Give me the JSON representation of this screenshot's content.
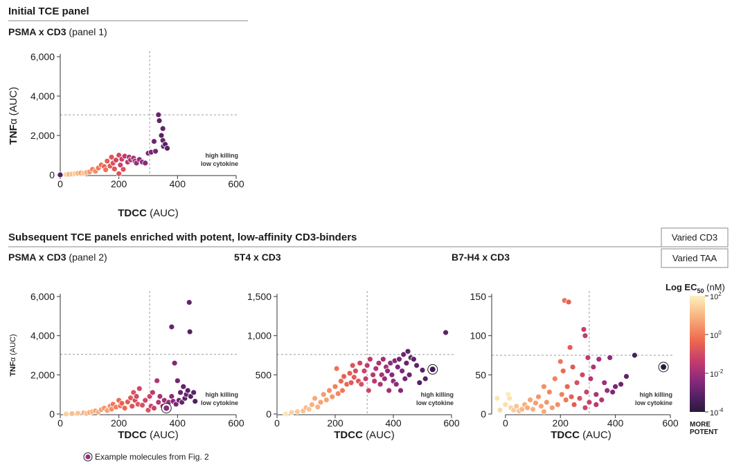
{
  "header": {
    "section1_title": "Initial TCE panel",
    "section2_title": "Subsequent TCE panels enriched with potent, low-affinity CD3-binders"
  },
  "tags": {
    "varied_cd3": "Varied CD3",
    "varied_taa": "Varied TAA"
  },
  "legend": {
    "title_bold": "Log EC",
    "title_sub": "50",
    "title_unit": " (nM)",
    "ticks": [
      {
        "base": "10",
        "exp": "2"
      },
      {
        "base": "10",
        "exp": "0"
      },
      {
        "base": "10",
        "exp": "-2"
      },
      {
        "base": "10",
        "exp": "-4"
      }
    ],
    "more": "MORE",
    "potent": "POTENT",
    "colors": [
      "#fcf1c0",
      "#f8b27f",
      "#ee6a4e",
      "#c83e6b",
      "#8d2a7c",
      "#4f2062",
      "#2a1a3a"
    ]
  },
  "example_note": "Example molecules from Fig. 2",
  "annotation": {
    "line1": "high killing",
    "line2": "low cytokine"
  },
  "chart_data": [
    {
      "type": "scatter",
      "title_bold": "PSMA x CD3",
      "title_normal": " (panel 1)",
      "xlabel_bold": "TDCC",
      "xlabel_normal": " (AUC)",
      "ylabel_bold": "TNF",
      "ylabel_normal": "α (AUC)",
      "xlim": [
        0,
        600
      ],
      "ylim": [
        0,
        6000
      ],
      "xticks": [
        0,
        200,
        400,
        600
      ],
      "yticks": [
        0,
        2000,
        4000,
        6000
      ],
      "ytick_labels": [
        "0",
        "2,000",
        "4,000",
        "6,000"
      ],
      "threshold_x": 305,
      "threshold_y": 3050,
      "points": [
        [
          0,
          0,
          -3
        ],
        [
          20,
          20,
          1.5
        ],
        [
          30,
          30,
          1
        ],
        [
          40,
          40,
          1.2
        ],
        [
          50,
          60,
          1.4
        ],
        [
          60,
          80,
          1
        ],
        [
          70,
          100,
          0.8
        ],
        [
          80,
          90,
          1.2
        ],
        [
          90,
          120,
          0.9
        ],
        [
          100,
          150,
          0.6
        ],
        [
          110,
          280,
          0.3
        ],
        [
          120,
          180,
          0.5
        ],
        [
          130,
          350,
          0.2
        ],
        [
          140,
          500,
          0
        ],
        [
          150,
          420,
          -0.2
        ],
        [
          155,
          260,
          0.1
        ],
        [
          160,
          700,
          -0.3
        ],
        [
          170,
          450,
          -0.4
        ],
        [
          175,
          900,
          -0.5
        ],
        [
          180,
          600,
          -0.6
        ],
        [
          185,
          300,
          -0.4
        ],
        [
          190,
          750,
          -0.8
        ],
        [
          200,
          1000,
          -0.7
        ],
        [
          205,
          500,
          -0.9
        ],
        [
          210,
          800,
          -1
        ],
        [
          215,
          280,
          -0.5
        ],
        [
          220,
          950,
          -1.2
        ],
        [
          230,
          650,
          -1.3
        ],
        [
          235,
          900,
          -1.5
        ],
        [
          240,
          760,
          -1.4
        ],
        [
          250,
          850,
          -1.6
        ],
        [
          255,
          700,
          -1.7
        ],
        [
          260,
          600,
          -1.8
        ],
        [
          270,
          780,
          -1.9
        ],
        [
          280,
          650,
          -2
        ],
        [
          290,
          600,
          -2.1
        ],
        [
          300,
          1100,
          -2.2
        ],
        [
          310,
          1150,
          -2.3
        ],
        [
          320,
          1700,
          -2.5
        ],
        [
          325,
          1200,
          -2.4
        ],
        [
          335,
          3050,
          -2.6
        ],
        [
          338,
          2750,
          -2.7
        ],
        [
          345,
          2000,
          -2.8
        ],
        [
          350,
          2350,
          -2.7
        ],
        [
          350,
          1750,
          -2.6
        ],
        [
          352,
          1450,
          -2.8
        ],
        [
          358,
          1550,
          -2.9
        ],
        [
          365,
          1350,
          -2.8
        ],
        [
          200,
          60,
          -0.5
        ]
      ]
    },
    {
      "type": "scatter",
      "title_bold": "PSMA x CD3",
      "title_normal": " (panel 2)",
      "xlabel_bold": "TDCC",
      "xlabel_normal": " (AUC)",
      "ylabel_bold": "TNF",
      "ylabel_normal": "α (AUC)",
      "xlim": [
        0,
        600
      ],
      "ylim": [
        0,
        6000
      ],
      "xticks": [
        0,
        200,
        400,
        600
      ],
      "yticks": [
        0,
        2000,
        4000,
        6000
      ],
      "ytick_labels": [
        "0",
        "2,000",
        "4,000",
        "6,000"
      ],
      "threshold_x": 305,
      "threshold_y": 3050,
      "points": [
        [
          20,
          0,
          1.5
        ],
        [
          40,
          20,
          1.2
        ],
        [
          60,
          40,
          1.3
        ],
        [
          80,
          60,
          1
        ],
        [
          90,
          30,
          1.1
        ],
        [
          100,
          80,
          0.9
        ],
        [
          110,
          120,
          1
        ],
        [
          120,
          160,
          0.8
        ],
        [
          130,
          100,
          0.9
        ],
        [
          140,
          220,
          0.7
        ],
        [
          150,
          300,
          0.6
        ],
        [
          160,
          180,
          0.8
        ],
        [
          170,
          400,
          0.4
        ],
        [
          175,
          250,
          0.5
        ],
        [
          180,
          500,
          0.2
        ],
        [
          190,
          350,
          0.3
        ],
        [
          200,
          700,
          0
        ],
        [
          205,
          420,
          0.1
        ],
        [
          210,
          550,
          -0.2
        ],
        [
          220,
          300,
          0
        ],
        [
          230,
          620,
          -0.3
        ],
        [
          240,
          820,
          -0.4
        ],
        [
          245,
          400,
          -0.5
        ],
        [
          250,
          1100,
          -0.5
        ],
        [
          255,
          700,
          -0.6
        ],
        [
          260,
          900,
          -0.7
        ],
        [
          265,
          500,
          -0.4
        ],
        [
          270,
          1300,
          -0.8
        ],
        [
          280,
          450,
          -0.6
        ],
        [
          290,
          700,
          -0.8
        ],
        [
          300,
          200,
          -0.5
        ],
        [
          305,
          900,
          -0.9
        ],
        [
          310,
          400,
          -1
        ],
        [
          315,
          1100,
          -1.2
        ],
        [
          320,
          300,
          -0.9
        ],
        [
          330,
          1700,
          -1.4
        ],
        [
          335,
          600,
          -1.3
        ],
        [
          340,
          900,
          -1.5
        ],
        [
          350,
          400,
          -1.6
        ],
        [
          355,
          700,
          -1.7
        ],
        [
          365,
          300,
          -1.8
        ],
        [
          370,
          600,
          -1.9
        ],
        [
          380,
          900,
          -2
        ],
        [
          385,
          650,
          -2.1
        ],
        [
          390,
          2600,
          -2.2
        ],
        [
          395,
          500,
          -2.3
        ],
        [
          400,
          1700,
          -2.4
        ],
        [
          405,
          700,
          -2.5
        ],
        [
          410,
          1100,
          -2.6
        ],
        [
          415,
          600,
          -2.6
        ],
        [
          420,
          1400,
          -2.7
        ],
        [
          425,
          800,
          -2.8
        ],
        [
          430,
          1000,
          -2.7
        ],
        [
          435,
          1200,
          -2.8
        ],
        [
          440,
          5700,
          -2.7
        ],
        [
          442,
          4200,
          -2.9
        ],
        [
          380,
          4450,
          -2.6
        ],
        [
          445,
          900,
          -2.9
        ],
        [
          455,
          1100,
          -2.8
        ],
        [
          460,
          650,
          -3
        ]
      ],
      "highlight": [
        [
          362,
          300,
          -2
        ]
      ]
    },
    {
      "type": "scatter",
      "title_bold": "5T4 x CD3",
      "title_normal": "",
      "xlabel_bold": "TDCC",
      "xlabel_normal": " (AUC)",
      "xlim": [
        0,
        600
      ],
      "ylim": [
        0,
        1500
      ],
      "xticks": [
        0,
        200,
        400,
        600
      ],
      "yticks": [
        0,
        500,
        1000,
        1500
      ],
      "ytick_labels": [
        "0",
        "500",
        "1,000",
        "1,500"
      ],
      "threshold_x": 310,
      "threshold_y": 760,
      "points": [
        [
          30,
          0,
          1.8
        ],
        [
          50,
          20,
          1.5
        ],
        [
          70,
          30,
          1.4
        ],
        [
          90,
          40,
          1.2
        ],
        [
          100,
          80,
          1.1
        ],
        [
          110,
          60,
          1.3
        ],
        [
          120,
          120,
          1
        ],
        [
          130,
          200,
          0.9
        ],
        [
          140,
          90,
          1
        ],
        [
          150,
          150,
          0.8
        ],
        [
          160,
          250,
          0.7
        ],
        [
          170,
          180,
          0.8
        ],
        [
          180,
          300,
          0.5
        ],
        [
          190,
          220,
          0.6
        ],
        [
          200,
          350,
          0.3
        ],
        [
          205,
          580,
          0.1
        ],
        [
          210,
          260,
          0.4
        ],
        [
          220,
          420,
          0
        ],
        [
          225,
          300,
          0.2
        ],
        [
          230,
          480,
          -0.2
        ],
        [
          240,
          380,
          -0.1
        ],
        [
          250,
          520,
          -0.3
        ],
        [
          255,
          400,
          -0.4
        ],
        [
          260,
          620,
          -0.5
        ],
        [
          265,
          470,
          -0.3
        ],
        [
          270,
          550,
          -0.6
        ],
        [
          280,
          420,
          -0.5
        ],
        [
          285,
          650,
          -0.8
        ],
        [
          290,
          380,
          -0.6
        ],
        [
          300,
          550,
          -0.9
        ],
        [
          305,
          450,
          -1
        ],
        [
          310,
          620,
          -1.1
        ],
        [
          315,
          300,
          -0.8
        ],
        [
          320,
          700,
          -1.2
        ],
        [
          330,
          500,
          -1.3
        ],
        [
          335,
          420,
          -1.2
        ],
        [
          340,
          580,
          -1.4
        ],
        [
          350,
          650,
          -1.5
        ],
        [
          355,
          380,
          -1.4
        ],
        [
          360,
          500,
          -1.6
        ],
        [
          365,
          700,
          -1.7
        ],
        [
          370,
          450,
          -1.8
        ],
        [
          375,
          600,
          -1.6
        ],
        [
          380,
          550,
          -1.9
        ],
        [
          385,
          300,
          -1.7
        ],
        [
          390,
          650,
          -2
        ],
        [
          395,
          500,
          -2.1
        ],
        [
          400,
          420,
          -1.9
        ],
        [
          405,
          680,
          -2.2
        ],
        [
          410,
          380,
          -2
        ],
        [
          415,
          600,
          -2.3
        ],
        [
          420,
          700,
          -2.4
        ],
        [
          425,
          300,
          -2.1
        ],
        [
          430,
          550,
          -2.2
        ],
        [
          435,
          760,
          -2.5
        ],
        [
          440,
          450,
          -2.4
        ],
        [
          445,
          650,
          -2.6
        ],
        [
          450,
          800,
          -2.7
        ],
        [
          455,
          500,
          -2.5
        ],
        [
          460,
          720,
          -2.6
        ],
        [
          470,
          700,
          -2.8
        ],
        [
          480,
          620,
          -2.7
        ],
        [
          490,
          400,
          -2.9
        ],
        [
          500,
          560,
          -2.8
        ],
        [
          510,
          450,
          -2.9
        ],
        [
          580,
          1040,
          -2.7
        ]
      ],
      "highlight": [
        [
          535,
          570,
          -3.5
        ]
      ]
    },
    {
      "type": "scatter",
      "title_bold": "B7-H4 x CD3",
      "title_normal": "",
      "xlabel_bold": "TDCC",
      "xlabel_normal": " (AUC)",
      "xlim": [
        -50,
        600
      ],
      "ylim": [
        0,
        150
      ],
      "xticks": [
        0,
        200,
        400,
        600
      ],
      "yticks": [
        0,
        50,
        100,
        150
      ],
      "ytick_labels": [
        "0",
        "50",
        "100",
        "150"
      ],
      "threshold_x": 305,
      "threshold_y": 75,
      "points": [
        [
          -30,
          20,
          1.8
        ],
        [
          -20,
          5,
          1.6
        ],
        [
          0,
          12,
          1.7
        ],
        [
          10,
          25,
          1.9
        ],
        [
          15,
          20,
          1.8
        ],
        [
          20,
          8,
          1.5
        ],
        [
          30,
          5,
          1.4
        ],
        [
          40,
          10,
          1.3
        ],
        [
          50,
          4,
          1.2
        ],
        [
          60,
          6,
          1.1
        ],
        [
          70,
          12,
          1
        ],
        [
          80,
          8,
          0.9
        ],
        [
          90,
          18,
          0.8
        ],
        [
          100,
          6,
          1
        ],
        [
          110,
          14,
          0.7
        ],
        [
          120,
          22,
          0.6
        ],
        [
          130,
          10,
          0.8
        ],
        [
          140,
          35,
          0.5
        ],
        [
          150,
          15,
          0.6
        ],
        [
          160,
          28,
          0.4
        ],
        [
          170,
          8,
          0.7
        ],
        [
          180,
          45,
          0.3
        ],
        [
          190,
          12,
          0.5
        ],
        [
          200,
          67,
          0.2
        ],
        [
          205,
          25,
          0.3
        ],
        [
          210,
          55,
          0
        ],
        [
          215,
          145,
          0.1
        ],
        [
          220,
          18,
          0.2
        ],
        [
          225,
          35,
          -0.1
        ],
        [
          230,
          143,
          -0.2
        ],
        [
          235,
          85,
          -0.3
        ],
        [
          240,
          22,
          -0.2
        ],
        [
          245,
          60,
          -0.4
        ],
        [
          250,
          12,
          -0.3
        ],
        [
          260,
          40,
          -0.6
        ],
        [
          270,
          20,
          -0.5
        ],
        [
          280,
          50,
          -0.8
        ],
        [
          285,
          108,
          -1
        ],
        [
          290,
          100,
          -1.1
        ],
        [
          295,
          28,
          -0.9
        ],
        [
          300,
          72,
          -1.2
        ],
        [
          305,
          15,
          -1
        ],
        [
          310,
          45,
          -1.3
        ],
        [
          320,
          60,
          -1.4
        ],
        [
          330,
          25,
          -1.5
        ],
        [
          340,
          70,
          -1.6
        ],
        [
          350,
          18,
          -1.4
        ],
        [
          360,
          40,
          -1.7
        ],
        [
          370,
          30,
          -1.8
        ],
        [
          380,
          72,
          -2
        ],
        [
          390,
          28,
          -2.2
        ],
        [
          400,
          35,
          -2.3
        ],
        [
          420,
          38,
          -2.5
        ],
        [
          440,
          48,
          -2.7
        ],
        [
          470,
          75,
          -3.2
        ],
        [
          330,
          12,
          -1.2
        ],
        [
          290,
          8,
          -0.8
        ],
        [
          140,
          3,
          0.9
        ]
      ],
      "highlight": [
        [
          575,
          60,
          -4
        ]
      ]
    }
  ]
}
